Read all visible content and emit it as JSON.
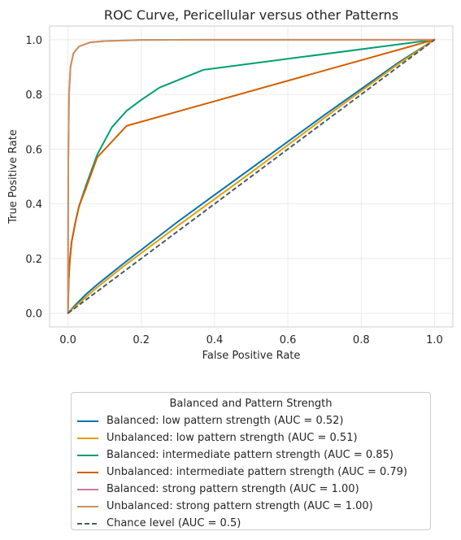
{
  "chart_data": {
    "type": "line",
    "title": "ROC Curve, Pericellular versus other Patterns",
    "xlabel": "False Positive Rate",
    "ylabel": "True Positive Rate",
    "xlim": [
      -0.05,
      1.05
    ],
    "ylim": [
      -0.05,
      1.05
    ],
    "xticks": [
      "0.0",
      "0.2",
      "0.4",
      "0.6",
      "0.8",
      "1.0"
    ],
    "yticks": [
      "0.0",
      "0.2",
      "0.4",
      "0.6",
      "0.8",
      "1.0"
    ],
    "grid": true,
    "legend": {
      "title": "Balanced and Pattern Strength",
      "placement": "below plot"
    },
    "series": [
      {
        "name": "Balanced: low pattern strength (AUC = 0.52)",
        "color": "#0072b2",
        "dash": "solid",
        "points": [
          [
            0,
            0
          ],
          [
            0.02,
            0.03
          ],
          [
            0.05,
            0.07
          ],
          [
            0.08,
            0.105
          ],
          [
            0.15,
            0.18
          ],
          [
            0.3,
            0.335
          ],
          [
            0.5,
            0.53
          ],
          [
            0.7,
            0.725
          ],
          [
            0.9,
            0.915
          ],
          [
            1.0,
            1.0
          ]
        ]
      },
      {
        "name": "Unbalanced: low pattern strength (AUC = 0.51)",
        "color": "#e69f00",
        "dash": "solid",
        "points": [
          [
            0,
            0
          ],
          [
            0.02,
            0.025
          ],
          [
            0.05,
            0.06
          ],
          [
            0.08,
            0.095
          ],
          [
            0.15,
            0.17
          ],
          [
            0.3,
            0.32
          ],
          [
            0.5,
            0.515
          ],
          [
            0.7,
            0.715
          ],
          [
            0.9,
            0.91
          ],
          [
            1.0,
            1.0
          ]
        ]
      },
      {
        "name": "Balanced: intermediate pattern strength (AUC = 0.85)",
        "color": "#009e73",
        "dash": "solid",
        "points": [
          [
            0,
            0
          ],
          [
            0.002,
            0.12
          ],
          [
            0.005,
            0.19
          ],
          [
            0.01,
            0.26
          ],
          [
            0.02,
            0.33
          ],
          [
            0.03,
            0.39
          ],
          [
            0.05,
            0.47
          ],
          [
            0.08,
            0.58
          ],
          [
            0.12,
            0.68
          ],
          [
            0.16,
            0.74
          ],
          [
            0.2,
            0.78
          ],
          [
            0.25,
            0.825
          ],
          [
            0.37,
            0.89
          ],
          [
            1.0,
            1.0
          ]
        ]
      },
      {
        "name": "Unbalanced: intermediate pattern strength (AUC = 0.79)",
        "color": "#d55e00",
        "dash": "solid",
        "points": [
          [
            0,
            0
          ],
          [
            0.002,
            0.12
          ],
          [
            0.005,
            0.19
          ],
          [
            0.01,
            0.26
          ],
          [
            0.02,
            0.33
          ],
          [
            0.03,
            0.39
          ],
          [
            0.05,
            0.46
          ],
          [
            0.08,
            0.57
          ],
          [
            0.16,
            0.685
          ],
          [
            1.0,
            1.0
          ]
        ]
      },
      {
        "name": "Balanced: strong pattern strength (AUC = 1.00)",
        "color": "#cc79a7",
        "dash": "solid",
        "points": [
          [
            0,
            0
          ],
          [
            0.001,
            0.55
          ],
          [
            0.003,
            0.8
          ],
          [
            0.007,
            0.9
          ],
          [
            0.015,
            0.95
          ],
          [
            0.03,
            0.975
          ],
          [
            0.06,
            0.99
          ],
          [
            0.1,
            0.995
          ],
          [
            0.2,
            0.999
          ],
          [
            0.4,
            1.0
          ],
          [
            1.0,
            1.0
          ]
        ]
      },
      {
        "name": "Unbalanced: strong pattern strength (AUC = 1.00)",
        "color": "#ca9161",
        "dash": "solid",
        "points": [
          [
            0,
            0
          ],
          [
            0.001,
            0.55
          ],
          [
            0.003,
            0.8
          ],
          [
            0.007,
            0.9
          ],
          [
            0.015,
            0.95
          ],
          [
            0.03,
            0.975
          ],
          [
            0.06,
            0.99
          ],
          [
            0.1,
            0.995
          ],
          [
            0.2,
            0.999
          ],
          [
            0.4,
            1.0
          ],
          [
            1.0,
            1.0
          ]
        ]
      },
      {
        "name": "Chance level (AUC = 0.5)",
        "color": "#4a5a6a",
        "dash": "dashed",
        "points": [
          [
            0,
            0
          ],
          [
            1.0,
            1.0
          ]
        ]
      }
    ]
  }
}
